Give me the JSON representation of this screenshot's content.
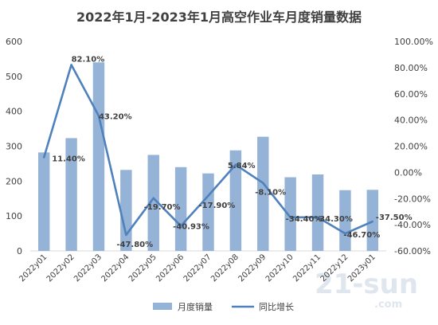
{
  "chart_data": {
    "type": "bar+line",
    "title": "2022年1月-2023年1月高空作业车月度销量数据",
    "categories": [
      "2022y01",
      "2022y02",
      "2022y03",
      "2022y04",
      "2022y05",
      "2022y06",
      "2022y07",
      "2022y08",
      "2022y09",
      "2022y10",
      "2022y11",
      "2022y12",
      "2023y01"
    ],
    "series": [
      {
        "name": "月度销量",
        "type": "bar",
        "axis": "left",
        "color": "#95b3d7",
        "values": [
          282,
          323,
          540,
          232,
          275,
          240,
          222,
          288,
          327,
          211,
          219,
          174,
          175
        ]
      },
      {
        "name": "同比增长",
        "type": "line",
        "axis": "right",
        "color": "#4f81bd",
        "values": [
          11.4,
          82.1,
          43.2,
          -47.8,
          -19.7,
          -40.93,
          -17.9,
          5.84,
          -8.1,
          -34.4,
          -34.3,
          -46.7,
          -37.5
        ],
        "labels": [
          "11.40%",
          "82.10%",
          "43.20%",
          "-47.80%",
          "-19.70%",
          "-40.93%",
          "-17.90%",
          "5.84%",
          "-8.10%",
          "-34.40%",
          "-34.30%",
          "-46.70%",
          "-37.50%"
        ]
      }
    ],
    "y_left": {
      "min": 0,
      "max": 600,
      "ticks": [
        "0",
        "100",
        "200",
        "300",
        "400",
        "500",
        "600"
      ]
    },
    "y_right": {
      "min": -60,
      "max": 100,
      "ticks": [
        "-60.00%",
        "-40.00%",
        "-20.00%",
        "0.00%",
        "20.00%",
        "40.00%",
        "60.00%",
        "80.00%",
        "100.00%"
      ]
    },
    "grid": false,
    "legend_position": "bottom"
  },
  "watermark": {
    "text": "21-sun",
    "sub": ".com"
  }
}
